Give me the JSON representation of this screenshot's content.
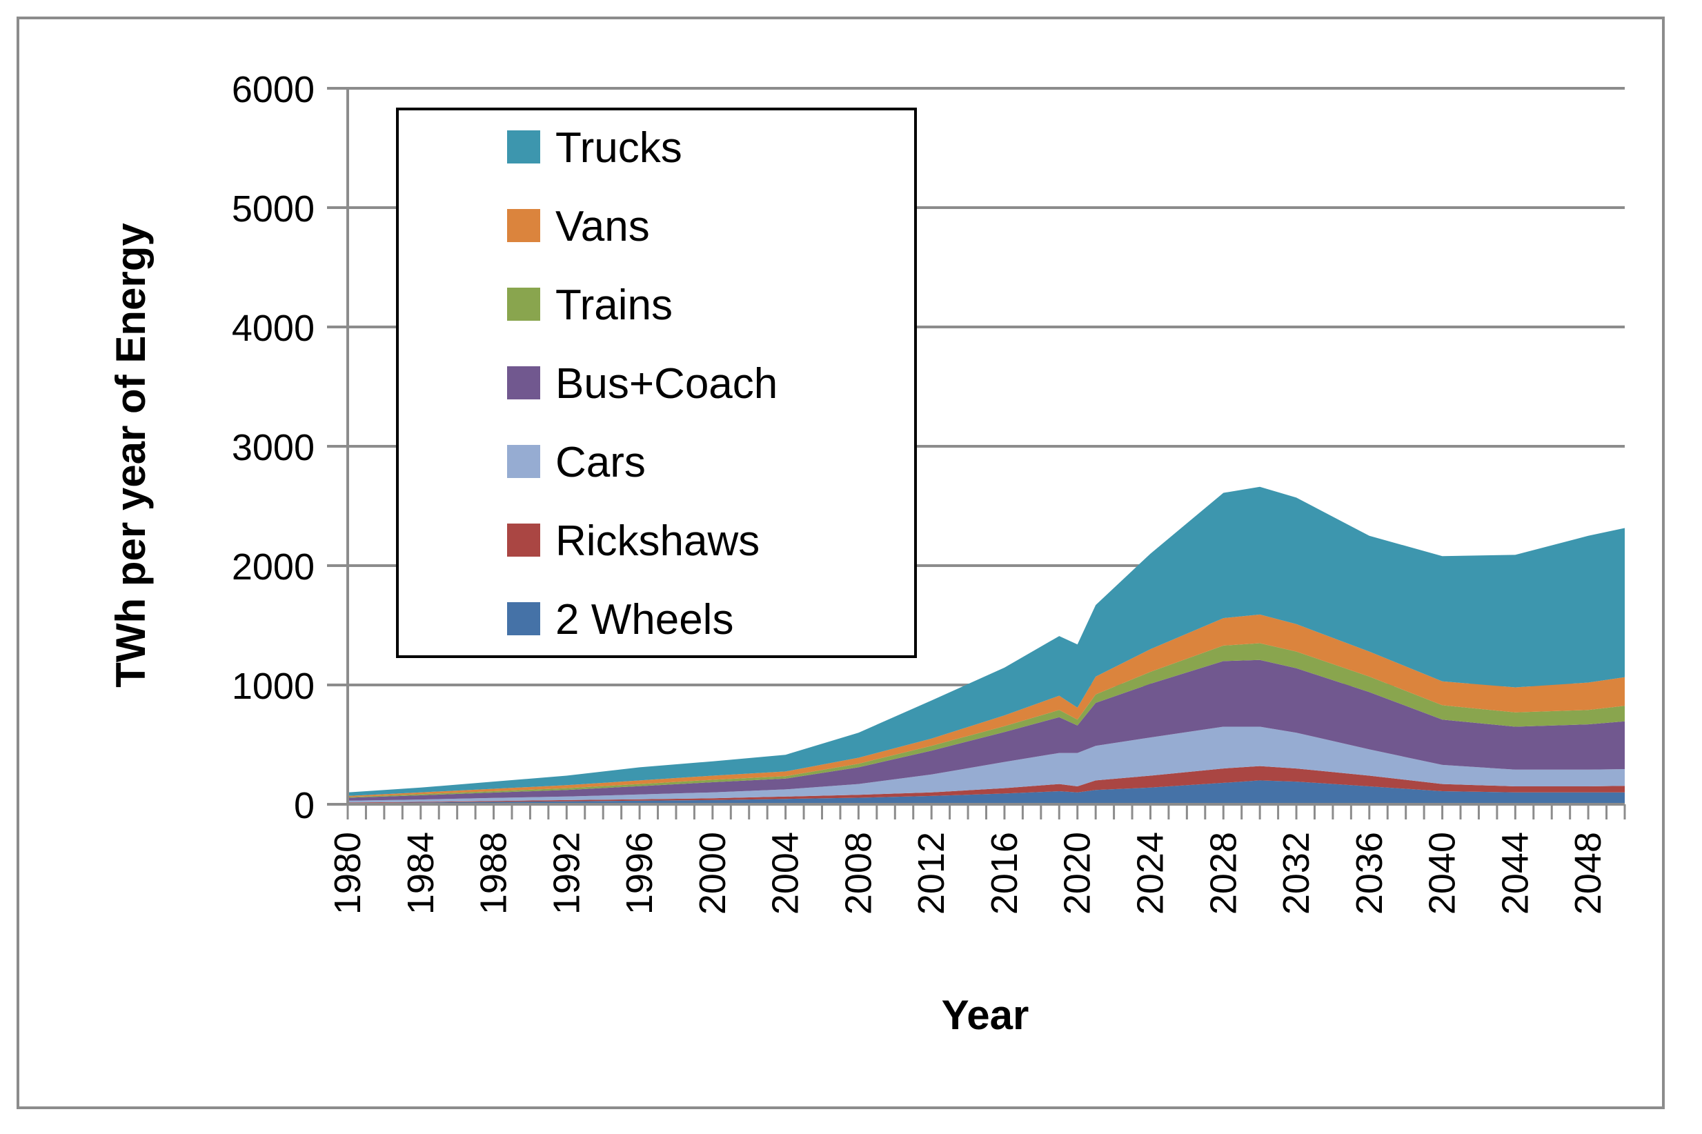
{
  "chart_data": {
    "type": "area",
    "stacked": true,
    "title": "",
    "xlabel": "Year",
    "ylabel": "TWh per year of Energy",
    "ylim": [
      0,
      6000
    ],
    "yticks": [
      0,
      1000,
      2000,
      3000,
      4000,
      5000,
      6000
    ],
    "xlim": [
      1980,
      2050
    ],
    "xticks": [
      1980,
      1984,
      1988,
      1992,
      1996,
      2000,
      2004,
      2008,
      2012,
      2016,
      2020,
      2024,
      2028,
      2032,
      2036,
      2040,
      2044,
      2048
    ],
    "grid": true,
    "legend_position": "top-left",
    "x": [
      1980,
      1984,
      1988,
      1992,
      1996,
      2000,
      2004,
      2008,
      2012,
      2016,
      2019,
      2020,
      2021,
      2024,
      2028,
      2030,
      2032,
      2036,
      2040,
      2044,
      2048,
      2050
    ],
    "series": [
      {
        "name": "2 Wheels",
        "color": "#4572a7",
        "values": [
          10,
          15,
          20,
          25,
          30,
          35,
          45,
          55,
          70,
          90,
          110,
          100,
          120,
          140,
          180,
          200,
          190,
          150,
          110,
          100,
          100,
          100
        ]
      },
      {
        "name": "Rickshaws",
        "color": "#aa4643",
        "values": [
          5,
          5,
          8,
          10,
          12,
          15,
          20,
          25,
          30,
          45,
          60,
          50,
          80,
          100,
          120,
          120,
          110,
          90,
          60,
          50,
          50,
          55
        ]
      },
      {
        "name": "Cars",
        "color": "#96acd2",
        "values": [
          15,
          20,
          25,
          30,
          40,
          50,
          60,
          90,
          150,
          220,
          260,
          280,
          290,
          320,
          350,
          330,
          300,
          220,
          160,
          140,
          140,
          140
        ]
      },
      {
        "name": "Bus+Coach",
        "color": "#71588f",
        "values": [
          25,
          35,
          45,
          55,
          70,
          85,
          90,
          140,
          200,
          250,
          300,
          230,
          360,
          450,
          550,
          560,
          540,
          480,
          380,
          360,
          380,
          400
        ]
      },
      {
        "name": "Trains",
        "color": "#89a54e",
        "values": [
          5,
          10,
          12,
          15,
          18,
          20,
          20,
          30,
          40,
          50,
          60,
          50,
          70,
          100,
          130,
          140,
          140,
          130,
          120,
          120,
          120,
          130
        ]
      },
      {
        "name": "Vans",
        "color": "#db843d",
        "values": [
          10,
          15,
          20,
          25,
          30,
          35,
          40,
          50,
          60,
          90,
          120,
          100,
          150,
          190,
          230,
          240,
          230,
          210,
          200,
          210,
          230,
          240
        ]
      },
      {
        "name": "Trucks",
        "color": "#3d96ae",
        "values": [
          30,
          40,
          60,
          80,
          110,
          120,
          140,
          210,
          320,
          400,
          500,
          530,
          600,
          800,
          1050,
          1070,
          1060,
          970,
          1050,
          1110,
          1230,
          1250
        ]
      }
    ],
    "legend_order": [
      "Trucks",
      "Vans",
      "Trains",
      "Bus+Coach",
      "Cars",
      "Rickshaws",
      "2 Wheels"
    ]
  }
}
